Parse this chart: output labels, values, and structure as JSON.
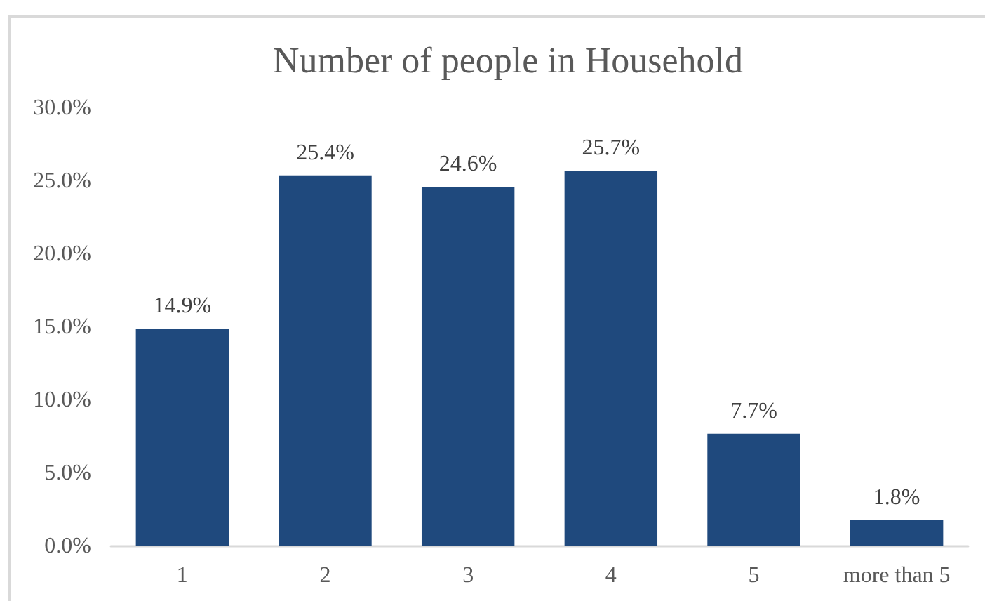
{
  "chart_data": {
    "type": "bar",
    "title": "Number of people in Household",
    "categories": [
      "1",
      "2",
      "3",
      "4",
      "5",
      "more than 5"
    ],
    "values": [
      14.9,
      25.4,
      24.6,
      25.7,
      7.7,
      1.8
    ],
    "value_labels": [
      "14.9%",
      "25.4%",
      "24.6%",
      "25.7%",
      "7.7%",
      "1.8%"
    ],
    "color": "#1f497d",
    "ylim": [
      0,
      30
    ],
    "yticks": [
      {
        "value": 0,
        "label": "0.0%"
      },
      {
        "value": 5,
        "label": "5.0%"
      },
      {
        "value": 10,
        "label": "10.0%"
      },
      {
        "value": 15,
        "label": "15.0%"
      },
      {
        "value": 20,
        "label": "20.0%"
      },
      {
        "value": 25,
        "label": "25.0%"
      },
      {
        "value": 30,
        "label": "30.0%"
      }
    ],
    "grid": false
  }
}
